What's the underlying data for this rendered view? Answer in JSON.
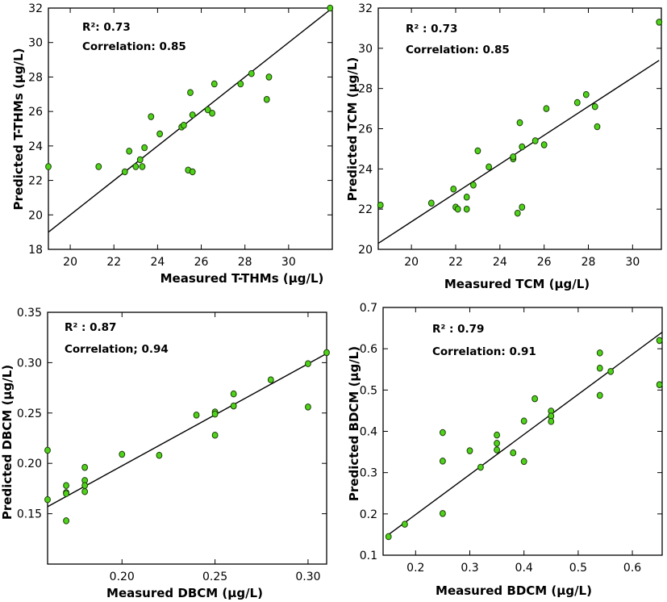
{
  "chart_data": [
    {
      "type": "scatter",
      "title": "",
      "xlabel": "Measured T-THMs (μg/L)",
      "ylabel": "Predicted T-THMs (μg/L)",
      "xlim": [
        19,
        32
      ],
      "ylim": [
        18,
        32
      ],
      "xticks": [
        20,
        22,
        24,
        26,
        28,
        30
      ],
      "yticks": [
        18,
        20,
        22,
        24,
        26,
        28,
        30,
        32
      ],
      "annotations": [
        "R²: 0.73",
        "Correlation: 0.85"
      ],
      "fit_line": [
        [
          19,
          19.0
        ],
        [
          32,
          32.0
        ]
      ],
      "x": [
        19.0,
        21.3,
        22.5,
        22.7,
        23.0,
        23.2,
        23.3,
        23.4,
        23.7,
        24.1,
        25.1,
        25.2,
        25.4,
        25.5,
        25.6,
        25.6,
        26.3,
        26.5,
        26.6,
        27.8,
        28.3,
        29.0,
        29.1,
        31.9
      ],
      "y": [
        22.8,
        22.8,
        22.5,
        23.7,
        22.8,
        23.2,
        22.8,
        23.9,
        25.7,
        24.7,
        25.1,
        25.2,
        22.6,
        27.1,
        22.5,
        25.8,
        26.1,
        25.9,
        27.6,
        27.6,
        28.2,
        26.7,
        28.0,
        32.0
      ]
    },
    {
      "type": "scatter",
      "title": "",
      "xlabel": "Measured TCM (μg/L)",
      "ylabel": "Predicted TCM (μg/L)",
      "xlim": [
        18.5,
        31.3
      ],
      "ylim": [
        20,
        32
      ],
      "xticks": [
        20,
        22,
        24,
        26,
        28,
        30
      ],
      "yticks": [
        20,
        22,
        24,
        26,
        28,
        30,
        32
      ],
      "annotations": [
        "R² : 0.73",
        "Correlation: 0.85"
      ],
      "fit_line": [
        [
          18.5,
          20.3
        ],
        [
          31.2,
          29.4
        ]
      ],
      "x": [
        18.6,
        20.9,
        21.9,
        22.0,
        22.1,
        22.5,
        22.5,
        22.8,
        23.0,
        23.5,
        24.6,
        24.6,
        24.8,
        24.9,
        25.0,
        25.0,
        25.6,
        26.0,
        26.1,
        27.5,
        27.9,
        28.3,
        28.4,
        31.2
      ],
      "y": [
        22.2,
        22.3,
        23.0,
        22.1,
        22.0,
        22.6,
        22.0,
        23.2,
        24.9,
        24.1,
        24.5,
        24.6,
        21.8,
        26.3,
        22.1,
        25.1,
        25.4,
        25.2,
        27.0,
        27.3,
        27.7,
        27.1,
        26.1,
        31.3
      ]
    },
    {
      "type": "scatter",
      "title": "",
      "xlabel": "Measured DBCM (μg/L)",
      "ylabel": "Predicted DBCM (μg/L)",
      "xlim": [
        0.16,
        0.31
      ],
      "ylim": [
        0.1,
        0.35
      ],
      "xticks": [
        0.2,
        0.25,
        0.3
      ],
      "yticks": [
        0.15,
        0.2,
        0.25,
        0.3,
        0.35
      ],
      "annotations": [
        "R² : 0.87",
        "Correlation; 0.94"
      ],
      "fit_line": [
        [
          0.16,
          0.157
        ],
        [
          0.31,
          0.309
        ]
      ],
      "x": [
        0.16,
        0.16,
        0.17,
        0.17,
        0.17,
        0.17,
        0.18,
        0.18,
        0.18,
        0.18,
        0.2,
        0.22,
        0.24,
        0.25,
        0.25,
        0.25,
        0.26,
        0.26,
        0.28,
        0.3,
        0.3,
        0.31
      ],
      "y": [
        0.213,
        0.164,
        0.178,
        0.171,
        0.17,
        0.143,
        0.196,
        0.183,
        0.178,
        0.172,
        0.209,
        0.208,
        0.248,
        0.251,
        0.249,
        0.228,
        0.269,
        0.257,
        0.283,
        0.299,
        0.256,
        0.31
      ]
    },
    {
      "type": "scatter",
      "title": "",
      "xlabel": "Measured BDCM (μg/L)",
      "ylabel": "Predicted BDCM (μg/L)",
      "xlim": [
        0.14,
        0.655
      ],
      "ylim": [
        0.1,
        0.7
      ],
      "xticks": [
        0.2,
        0.3,
        0.4,
        0.5,
        0.6
      ],
      "yticks": [
        0.1,
        0.2,
        0.3,
        0.4,
        0.5,
        0.6,
        0.7
      ],
      "annotations": [
        "R² : 0.79",
        "Correlation: 0.91"
      ],
      "fit_line": [
        [
          0.145,
          0.145
        ],
        [
          0.655,
          0.64
        ]
      ],
      "x": [
        0.15,
        0.18,
        0.25,
        0.25,
        0.25,
        0.3,
        0.32,
        0.35,
        0.35,
        0.35,
        0.38,
        0.4,
        0.4,
        0.42,
        0.45,
        0.45,
        0.45,
        0.54,
        0.54,
        0.54,
        0.56,
        0.65,
        0.65
      ],
      "y": [
        0.145,
        0.175,
        0.397,
        0.328,
        0.201,
        0.353,
        0.313,
        0.391,
        0.371,
        0.355,
        0.348,
        0.425,
        0.327,
        0.479,
        0.449,
        0.437,
        0.424,
        0.59,
        0.553,
        0.487,
        0.545,
        0.62,
        0.513
      ]
    }
  ]
}
